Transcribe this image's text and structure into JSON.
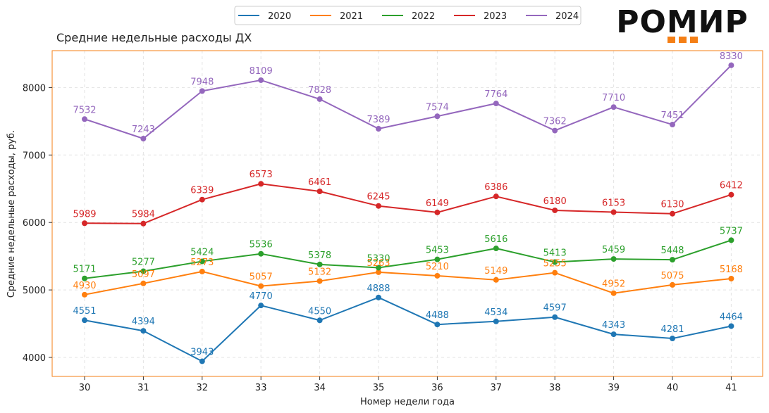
{
  "logo": {
    "text": "РОМИР",
    "accent": "#f47f16"
  },
  "chart_data": {
    "type": "line",
    "title": "Средние недельные расходы ДХ",
    "xlabel": "Номер недели года",
    "ylabel": "Средние недельные расходы, руб.",
    "categories": [
      "30",
      "31",
      "32",
      "33",
      "34",
      "35",
      "36",
      "37",
      "38",
      "39",
      "40",
      "41"
    ],
    "ylim": [
      3700,
      8550
    ],
    "yticks": [
      4000,
      5000,
      6000,
      7000,
      8000
    ],
    "grid": true,
    "legend_position": "top-center",
    "frame_color": "#f47f16",
    "series": [
      {
        "name": "2020",
        "color": "#1f77b4",
        "values": [
          4551,
          4394,
          3943,
          4770,
          4550,
          4888,
          4488,
          4534,
          4597,
          4343,
          4281,
          4464
        ]
      },
      {
        "name": "2021",
        "color": "#ff7f0e",
        "values": [
          4930,
          5097,
          5273,
          5057,
          5132,
          5263,
          5210,
          5149,
          5255,
          4952,
          5075,
          5168
        ]
      },
      {
        "name": "2022",
        "color": "#2ca02c",
        "values": [
          5171,
          5277,
          5424,
          5536,
          5378,
          5330,
          5453,
          5616,
          5413,
          5459,
          5448,
          5737
        ]
      },
      {
        "name": "2023",
        "color": "#d62728",
        "values": [
          5989,
          5984,
          6339,
          6573,
          6461,
          6245,
          6149,
          6386,
          6180,
          6153,
          6130,
          6412
        ]
      },
      {
        "name": "2024",
        "color": "#9467bd",
        "values": [
          7532,
          7243,
          7948,
          8109,
          7828,
          7389,
          7574,
          7764,
          7362,
          7710,
          7451,
          8330
        ]
      }
    ]
  }
}
